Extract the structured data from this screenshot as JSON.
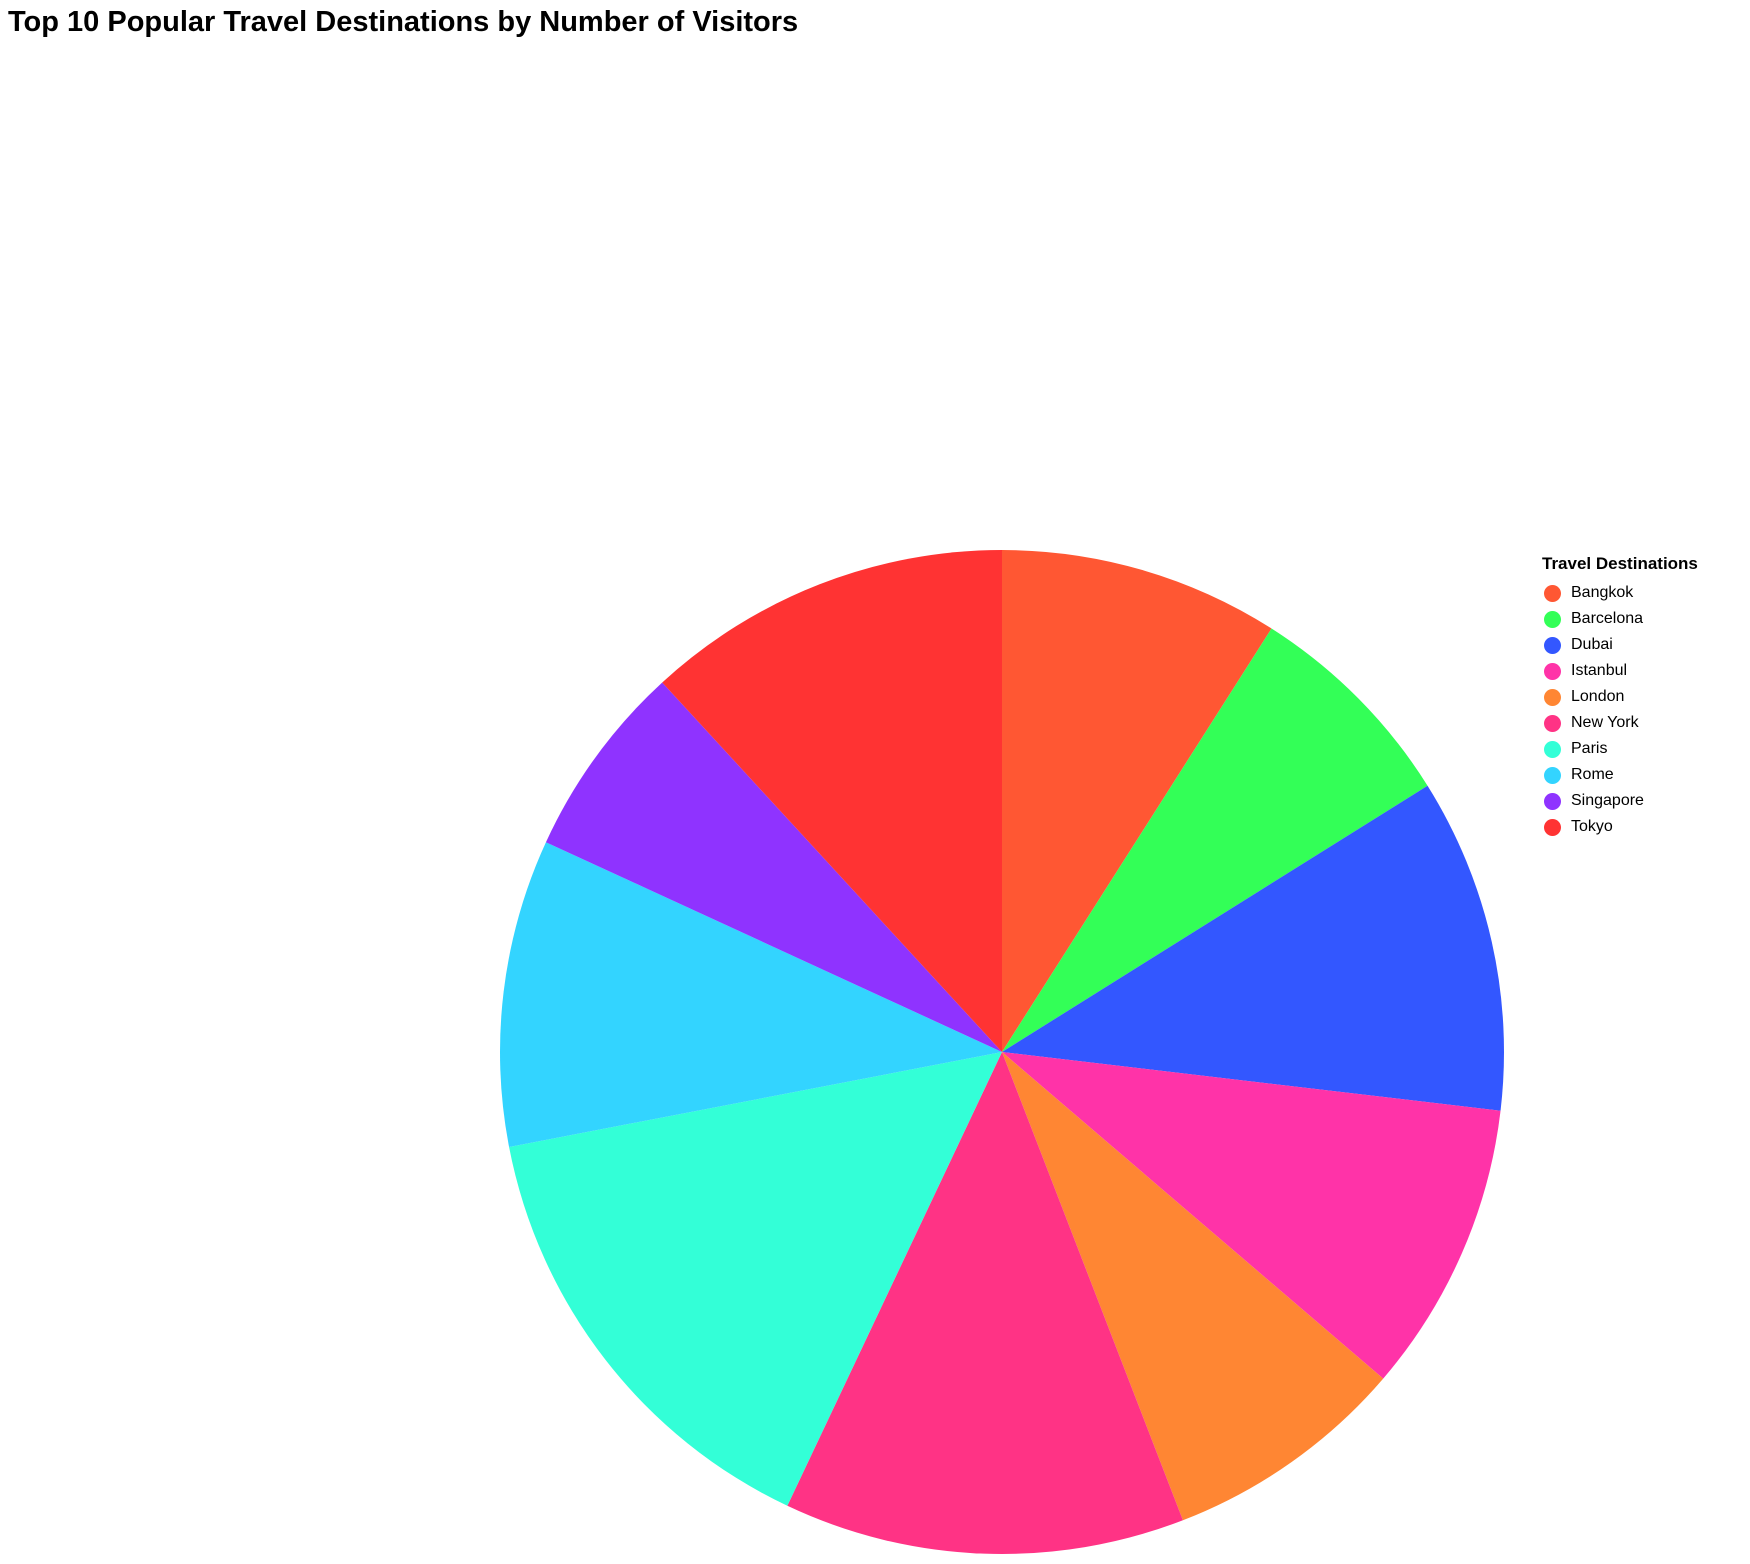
{
  "chart_data": {
    "type": "pie",
    "title": "Top 10 Popular Travel Destinations by Number of Visitors",
    "legend_title": "Travel Destinations",
    "legend_position": "right",
    "start_angle": "top, clockwise",
    "slices": [
      {
        "label": "Bangkok",
        "value": 9.3,
        "color": "#ff5733"
      },
      {
        "label": "Barcelona",
        "value": 7.3,
        "color": "#33ff57"
      },
      {
        "label": "Dubai",
        "value": 11.1,
        "color": "#3357ff"
      },
      {
        "label": "Istanbul",
        "value": 9.7,
        "color": "#ff33a8"
      },
      {
        "label": "London",
        "value": 8.1,
        "color": "#ff8633"
      },
      {
        "label": "New York",
        "value": 13.3,
        "color": "#ff3385"
      },
      {
        "label": "Paris",
        "value": 15.4,
        "color": "#33ffd7"
      },
      {
        "label": "Rome",
        "value": 10.2,
        "color": "#33d4ff"
      },
      {
        "label": "Singapore",
        "value": 6.5,
        "color": "#8f33ff"
      },
      {
        "label": "Tokyo",
        "value": 12.2,
        "color": "#ff3333"
      }
    ]
  }
}
